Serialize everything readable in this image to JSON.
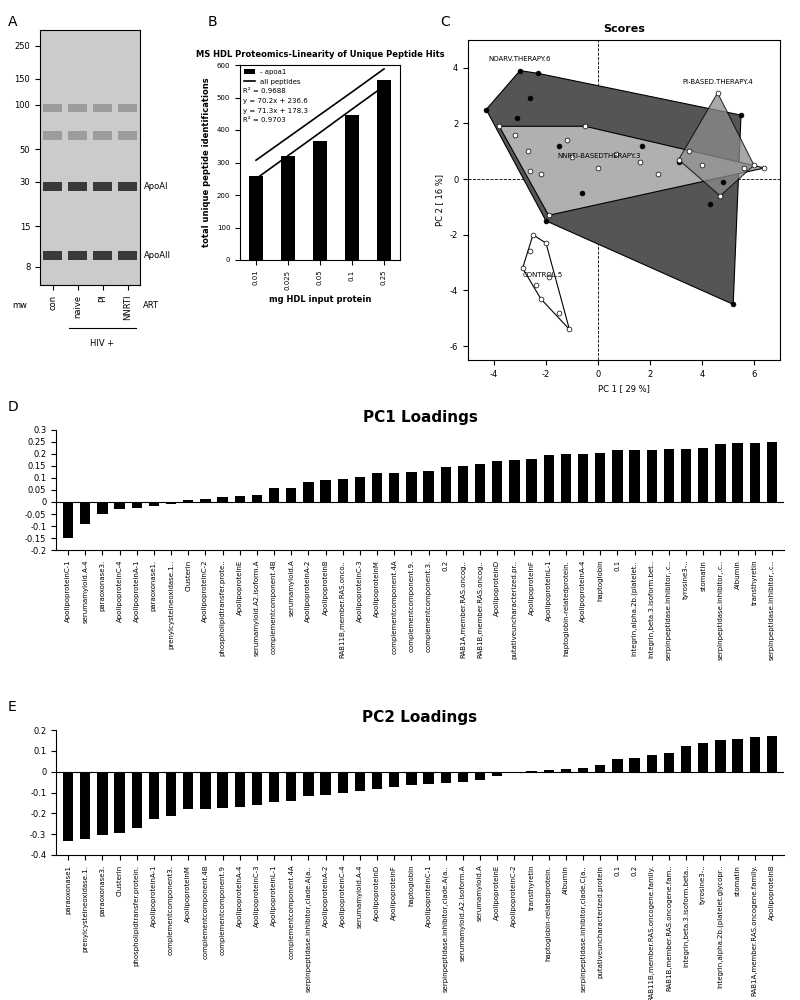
{
  "chart_data": [
    {
      "type": "gel",
      "panel_label": "A",
      "lanes": [
        "con",
        "naive",
        "PI",
        "NNRTI"
      ],
      "lane_group": {
        "label": "HIV +",
        "lanes": [
          "naive",
          "PI",
          "NNRTI"
        ]
      },
      "lane_title": "ART",
      "marker_label": "mw",
      "log": "y",
      "ylim": [
        6,
        320
      ],
      "yticks": [
        250,
        150,
        100,
        50,
        30,
        15,
        8
      ],
      "bands": [
        {
          "label": "ApoAI",
          "mw": 28
        },
        {
          "label": "ApoAII",
          "mw": 9.5
        },
        {
          "mw": 95
        },
        {
          "mw": 62
        }
      ]
    },
    {
      "type": "bar",
      "panel_label": "B",
      "title": "MS HDL Proteomics-Linearity of Unique Peptide Hits",
      "xlabel": "mg HDL input protein",
      "ylabel": "total unique peptide identifications",
      "categories": [
        "0.01",
        "0.025",
        "0.05",
        "0.1",
        "0.25"
      ],
      "series": [
        {
          "name": "- apoa1",
          "type": "bar",
          "color": "#000000",
          "values": [
            260,
            320,
            365,
            445,
            555
          ]
        },
        {
          "name": "all peptides",
          "type": "line",
          "color": "#000000",
          "values": [
            307,
            377,
            447,
            517,
            588
          ]
        },
        {
          "type": "line",
          "color": "#000000",
          "values": [
            250,
            321,
            392,
            464,
            535
          ]
        }
      ],
      "annotations": [
        "R² = 0.9688",
        "y = 70.2x + 236.6",
        "y = 71.3x + 178.3",
        "R² = 0.9703"
      ],
      "ylim": [
        0,
        600
      ],
      "yticks": [
        0,
        100,
        200,
        300,
        400,
        500,
        600
      ],
      "legend": "upper left"
    },
    {
      "type": "scatter",
      "panel_label": "C",
      "title": "Scores",
      "xlabel": "PC 1 [ 29 %]",
      "ylabel": "PC 2 [ 16 %]",
      "xlim": [
        -5,
        7
      ],
      "xticks": [
        -4,
        -2,
        0,
        2,
        4,
        6
      ],
      "ylim": [
        -6.5,
        5
      ],
      "yticks": [
        -6,
        -4,
        -2,
        0,
        2,
        4
      ],
      "series": [
        {
          "name": "NOARV.THERAPY.6",
          "color": "#555555",
          "marker": "o",
          "x": [
            -4.3,
            -3.0,
            -2.3,
            -2.6,
            -3.1,
            -0.6,
            1.7,
            3.1,
            4.3,
            4.8,
            5.2,
            5.5,
            -1.5,
            -2.0
          ],
          "y": [
            2.5,
            3.9,
            3.8,
            2.9,
            2.2,
            -0.5,
            1.2,
            0.6,
            -0.9,
            -0.1,
            -4.5,
            2.3,
            1.2,
            -1.5
          ]
        },
        {
          "name": "NNRTI-BASEDTHERAPY.3",
          "color": "#b0b0b0",
          "marker": "o",
          "x": [
            -3.8,
            -3.2,
            -2.7,
            -2.6,
            -2.2,
            -1.9,
            -1.2,
            -0.5,
            0.7,
            1.6,
            2.3,
            3.5,
            5.6,
            6.4,
            -1.0,
            0.0
          ],
          "y": [
            1.9,
            1.6,
            1.0,
            0.3,
            0.2,
            -1.3,
            1.4,
            1.9,
            0.9,
            0.6,
            0.2,
            1.0,
            0.4,
            0.4,
            0.8,
            0.4
          ]
        },
        {
          "name": "PI-BASED.THERAPY.4",
          "color": "#8c8c8c",
          "marker": "o",
          "x": [
            3.1,
            4.6,
            6.0,
            4.7,
            4.0
          ],
          "y": [
            0.7,
            3.1,
            0.5,
            -0.6,
            0.5
          ]
        },
        {
          "name": "CONTROL.5",
          "color": "#ffffff",
          "marker": "o",
          "x": [
            -2.5,
            -2.0,
            -1.9,
            -1.1,
            -2.6,
            -2.9,
            -2.4,
            -2.2,
            -1.5
          ],
          "y": [
            -2.0,
            -2.3,
            -3.5,
            -5.4,
            -2.6,
            -3.2,
            -3.8,
            -4.3,
            -4.8
          ]
        }
      ]
    },
    {
      "type": "bar",
      "panel_label": "D",
      "title": "PC1 Loadings",
      "color": "#000000",
      "categories": [
        "ApolipoproteinC-1",
        "serumamyloid.A-4",
        "paraoxonase3.",
        "ApolipoproteinC-4",
        "ApolipoproteinA-1",
        "paraoxonase1.",
        "prenylcysteineoxidase.1..",
        "Clusterin",
        "ApolipoproteinC-2",
        "phospholipidtransfer.prote..",
        "ApolipoproteinE",
        "serumamyloid.A2.isoform.A",
        "complementcomponent.4B",
        "serumamyloid.A",
        "ApolipoproteinA-2",
        "ApolipoproteinB",
        "RAB11B,member.RAS.onco..",
        "ApolipoproteinC-3",
        "ApolipoproteinM",
        "complementcomponent.4A",
        "complementcomponent.9.",
        "complementcomponent.3.",
        "0.2",
        "RAB1A,member.RAS.oncog..",
        "RAB1B,member.RAS.oncog..",
        "ApolipoproteinD",
        "putativeuncharacterized.pr..",
        "ApolipoproteinF",
        "ApolipoproteinL-1",
        "haptoglobin-relatedprotein.",
        "ApolipoproteinA-4",
        "haptoglobin",
        "0.1",
        "integrin,alpha.2b.(platelet..",
        "integrin,beta.3.isoform.bet..",
        "serpinpeptidase.inhibitor,.c..",
        "tyrosine3-..",
        "stomatin",
        "serpinpeptidase.inhibitor,.c..",
        "Albumin",
        "transthyretin",
        "serpinpeptidase.inhibitor,.c.."
      ],
      "values": [
        -0.15,
        -0.09,
        -0.05,
        -0.03,
        -0.025,
        -0.015,
        -0.01,
        0.01,
        0.012,
        0.02,
        0.025,
        0.03,
        0.06,
        0.06,
        0.085,
        0.09,
        0.095,
        0.105,
        0.12,
        0.12,
        0.125,
        0.13,
        0.145,
        0.15,
        0.16,
        0.17,
        0.175,
        0.18,
        0.195,
        0.2,
        0.2,
        0.205,
        0.215,
        0.215,
        0.215,
        0.22,
        0.22,
        0.225,
        0.24,
        0.245,
        0.245,
        0.25
      ],
      "ylim": [
        -0.2,
        0.3
      ],
      "yticks": [
        -0.2,
        -0.15,
        -0.1,
        -0.05,
        0,
        0.05,
        0.1,
        0.15,
        0.2,
        0.25,
        0.3
      ]
    },
    {
      "type": "bar",
      "panel_label": "E",
      "title": "PC2 Loadings",
      "color": "#000000",
      "categories": [
        "paraoxonase1",
        "prenylcysteineoxidase.1.",
        "paraoxonase3.",
        "Clusterin",
        "phospholipidtransfer.protein.",
        "ApolipoproteinA-1",
        "complementcomponent3.",
        "ApolipoproteinM",
        "complementcomponent.4B",
        "complementcomponent.9",
        "ApolipoproteinA-4",
        "ApolipoproteinC-3",
        "ApolipoproteinL-1",
        "complementcomponent.4A",
        "serpinpeptidase.inhibitor,clade.A(a..",
        "ApolipoproteinA-2",
        "ApolipoproteinC-4",
        "serumamyloid.A-4",
        "ApolipoproteinD",
        "ApolipoproteinF",
        "haptoglobin",
        "ApolipoproteinC-1",
        "serpinpeptidase.inhibitor,clade.A(a..",
        "serumamyloid.A2.isoform.A",
        "serumamyloid.A",
        "ApolipoproteinE",
        "ApolipoproteinC-2",
        "transthyretin",
        "haptoglobin-relatedprotein.",
        "Albumin",
        "serpinpeptidase.inhibitor,clade.C(a..",
        "putativeuncharacterized.protein",
        "0.1",
        "0.2",
        "RAB11B,member.RAS.oncogene.family.",
        "RAB1B,member.RAS.oncogene.fam..",
        "integrin,beta.3.isoform.beta..",
        "tyrosine3-..",
        "integrin,alpha.2b.(platelet.glycopr..",
        "stomatin",
        "RAB1A,member.RAS.oncogene.family.",
        "ApolipoproteinB"
      ],
      "values": [
        -0.335,
        -0.325,
        -0.305,
        -0.295,
        -0.27,
        -0.225,
        -0.215,
        -0.18,
        -0.18,
        -0.175,
        -0.17,
        -0.16,
        -0.145,
        -0.14,
        -0.115,
        -0.11,
        -0.1,
        -0.095,
        -0.085,
        -0.075,
        -0.065,
        -0.06,
        -0.055,
        -0.05,
        -0.04,
        -0.02,
        -0.005,
        0.005,
        0.01,
        0.015,
        0.02,
        0.03,
        0.06,
        0.065,
        0.08,
        0.09,
        0.125,
        0.14,
        0.15,
        0.155,
        0.165,
        0.17
      ],
      "ylim": [
        -0.4,
        0.2
      ],
      "yticks": [
        -0.4,
        -0.3,
        -0.2,
        -0.1,
        0,
        0.1,
        0.2
      ]
    }
  ]
}
